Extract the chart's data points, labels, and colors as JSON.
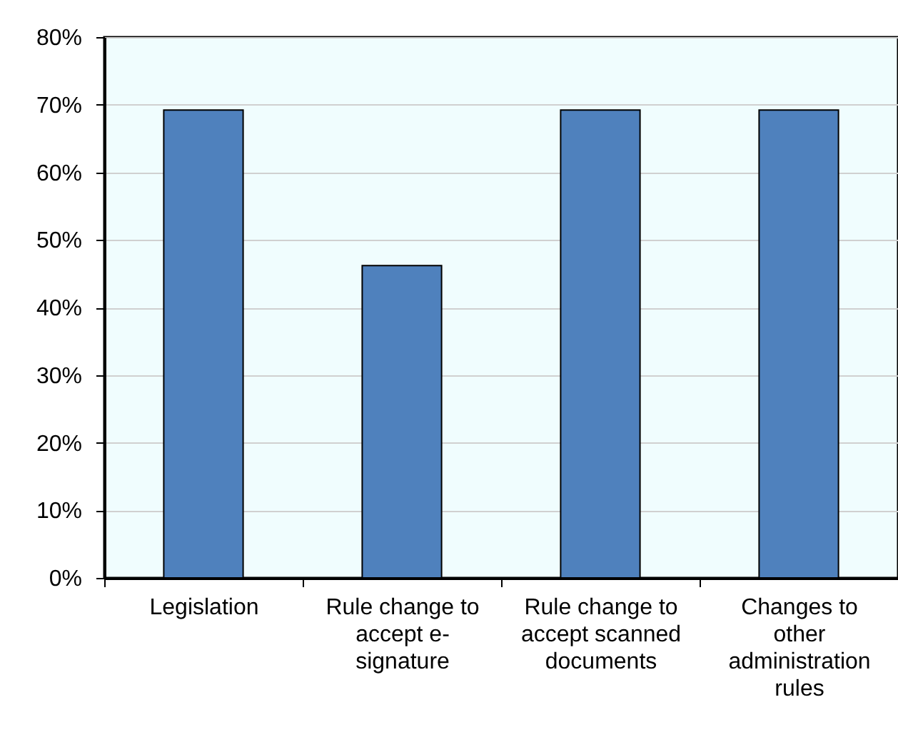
{
  "chart_data": {
    "type": "bar",
    "categories": [
      "Legislation",
      "Rule change to accept e-signature",
      "Rule change to accept scanned documents",
      "Changes to other administration rules"
    ],
    "values": [
      69.2,
      46.2,
      69.2,
      69.2
    ],
    "color": "#4f81bd",
    "ylim": [
      0,
      80
    ],
    "yticks": [
      {
        "value": 0,
        "label": "0%"
      },
      {
        "value": 10,
        "label": "10%"
      },
      {
        "value": 20,
        "label": "20%"
      },
      {
        "value": 30,
        "label": "30%"
      },
      {
        "value": 40,
        "label": "40%"
      },
      {
        "value": 50,
        "label": "50%"
      },
      {
        "value": 60,
        "label": "60%"
      },
      {
        "value": 70,
        "label": "70%"
      },
      {
        "value": 80,
        "label": "80%"
      }
    ],
    "grid": "y"
  }
}
